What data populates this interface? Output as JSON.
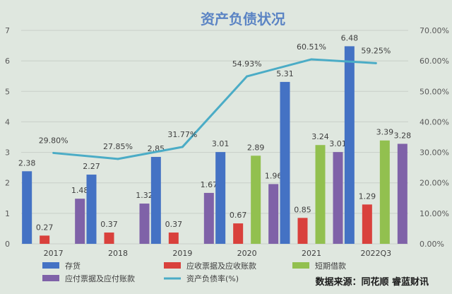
{
  "chart_data": {
    "type": "bar",
    "title": "资产负债状况",
    "categories": [
      "2017",
      "2018",
      "2019",
      "2020",
      "2021",
      "2022Q3"
    ],
    "ylim_left": [
      0,
      7
    ],
    "yticks_left": [
      "0",
      "1",
      "2",
      "3",
      "4",
      "5",
      "6",
      "7"
    ],
    "ylim_right": [
      0,
      70
    ],
    "yticks_right": [
      "0.00%",
      "10.00%",
      "20.00%",
      "30.00%",
      "40.00%",
      "50.00%",
      "60.00%",
      "70.00%"
    ],
    "grid": true,
    "legend_position": "bottom",
    "series": [
      {
        "name": "存货",
        "type": "bar",
        "color": "#4472c4",
        "values": [
          2.38,
          2.27,
          2.85,
          3.01,
          5.31,
          6.48
        ],
        "labels": [
          "2.38",
          "2.27",
          "2.85",
          "3.01",
          "5.31",
          "6.48"
        ]
      },
      {
        "name": "应收票据及应收账款",
        "type": "bar",
        "color": "#d9413c",
        "values": [
          0.27,
          0.37,
          0.37,
          0.67,
          0.85,
          1.29
        ],
        "labels": [
          "0.27",
          "0.37",
          "0.37",
          "0.67",
          "0.85",
          "1.29"
        ]
      },
      {
        "name": "短期借款",
        "type": "bar",
        "color": "#92c04f",
        "values": [
          null,
          null,
          null,
          2.89,
          3.24,
          3.39
        ],
        "labels": [
          "",
          "",
          "",
          "2.89",
          "3.24",
          "3.39"
        ]
      },
      {
        "name": "应付票据及应付账款",
        "type": "bar",
        "color": "#7f62a8",
        "values": [
          1.48,
          1.32,
          1.67,
          1.96,
          3.01,
          3.28
        ],
        "labels": [
          "1.48",
          "1.32",
          "1.67",
          "1.96",
          "3.01",
          "3.28"
        ]
      },
      {
        "name": "资产负债率(%)",
        "type": "line",
        "axis": "right",
        "color": "#4bacc6",
        "values": [
          29.8,
          27.85,
          31.77,
          54.93,
          60.51,
          59.25
        ],
        "labels": [
          "29.80%",
          "27.85%",
          "31.77%",
          "54.93%",
          "60.51%",
          "59.25%"
        ]
      }
    ],
    "source": "数据来源：同花顺  睿蓝财讯"
  }
}
